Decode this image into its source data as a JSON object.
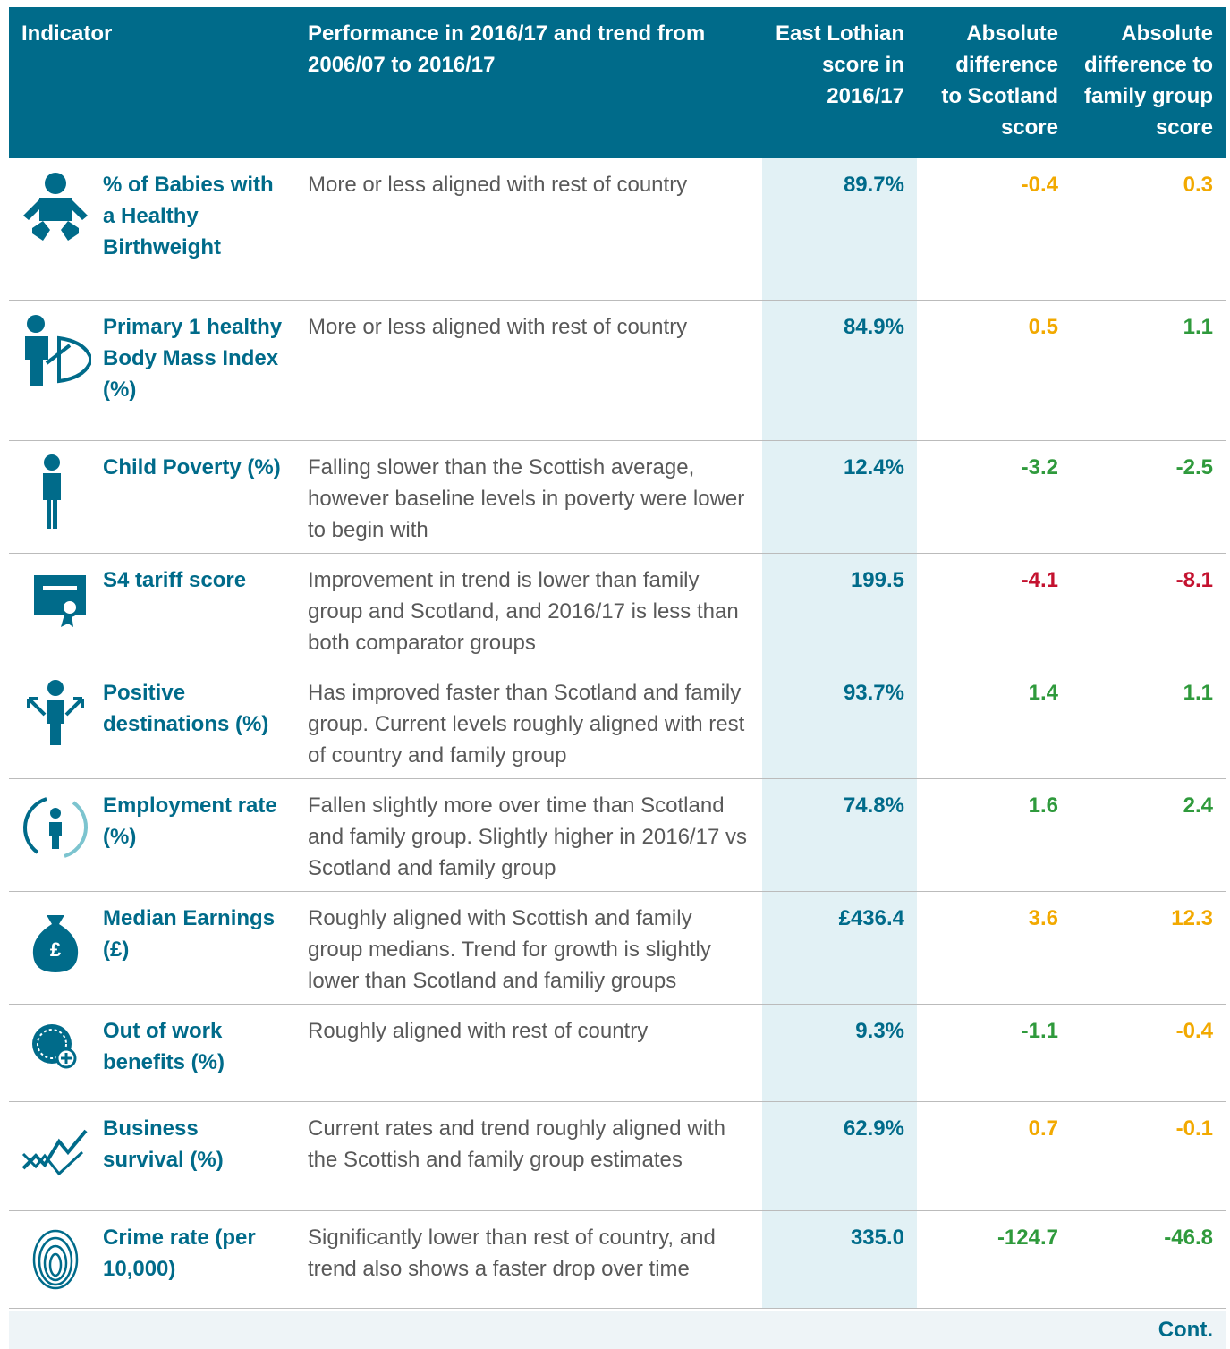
{
  "header": [
    "Indicator",
    "Performance in 2016/17 and trend from 2006/07 to 2016/17",
    "East Lothian score in 2016/17",
    "Absolute difference to Scotland score",
    "Absolute difference to family group score"
  ],
  "rows": [
    {
      "indicator": "% of Babies with a Healthy Birthweight",
      "performance": "More or less aligned with rest of country",
      "score": "89.7%",
      "scotland_diff": "-0.4",
      "family_diff": "0.3",
      "scotland_color": "#f2a900",
      "family_color": "#f2a900"
    },
    {
      "indicator": "Primary 1 healthy Body Mass Index (%)",
      "performance": "More or less aligned with rest of country",
      "score": "84.9%",
      "scotland_diff": "0.5",
      "family_diff": "1.1",
      "scotland_color": "#f2a900",
      "family_color": "#2f9a3c"
    },
    {
      "indicator": "Child Poverty (%)",
      "performance": "Falling slower than the Scottish average, however baseline levels in poverty were lower to begin with",
      "score": "12.4%",
      "scotland_diff": "-3.2",
      "family_diff": "-2.5",
      "scotland_color": "#2f9a3c",
      "family_color": "#2f9a3c"
    },
    {
      "indicator": "S4 tariff score",
      "performance": "Improvement in trend is lower than family group and Scotland, and 2016/17 is less than both comparator groups",
      "score": "199.5",
      "scotland_diff": "-4.1",
      "family_diff": "-8.1",
      "scotland_color": "#c4122f",
      "family_color": "#c4122f"
    },
    {
      "indicator": "Positive destinations (%)",
      "performance": "Has improved faster than Scotland and family group. Current levels roughly aligned with rest of country and family group",
      "score": "93.7%",
      "scotland_diff": "1.4",
      "family_diff": "1.1",
      "scotland_color": "#2f9a3c",
      "family_color": "#2f9a3c"
    },
    {
      "indicator": "Employment rate (%)",
      "performance": "Fallen slightly more over time than Scotland and family group. Slightly higher in 2016/17 vs Scotland and family group",
      "score": "74.8%",
      "scotland_diff": "1.6",
      "family_diff": "2.4",
      "scotland_color": "#2f9a3c",
      "family_color": "#2f9a3c"
    },
    {
      "indicator": "Median Earnings (£)",
      "performance": "Roughly aligned with Scottish and family group medians. Trend for growth is slightly lower than Scotland and familiy groups",
      "score": "£436.4",
      "scotland_diff": "3.6",
      "family_diff": "12.3",
      "scotland_color": "#f2a900",
      "family_color": "#f2a900"
    },
    {
      "indicator": "Out of work benefits (%)",
      "performance": "Roughly aligned with rest of country",
      "score": "9.3%",
      "scotland_diff": "-1.1",
      "family_diff": "-0.4",
      "scotland_color": "#2f9a3c",
      "family_color": "#f2a900"
    },
    {
      "indicator": "Business survival (%)",
      "performance": "Current rates and trend roughly aligned with the Scottish and family group estimates",
      "score": "62.9%",
      "scotland_diff": "0.7",
      "family_diff": "-0.1",
      "scotland_color": "#f2a900",
      "family_color": "#f2a900"
    },
    {
      "indicator": "Crime rate (per 10,000)",
      "performance": "Significantly lower than rest of country, and trend also shows a faster drop over time",
      "score": "335.0",
      "scotland_diff": "-124.7",
      "family_diff": "-46.8",
      "scotland_color": "#2f9a3c",
      "family_color": "#2f9a3c"
    }
  ],
  "footer": "Cont."
}
